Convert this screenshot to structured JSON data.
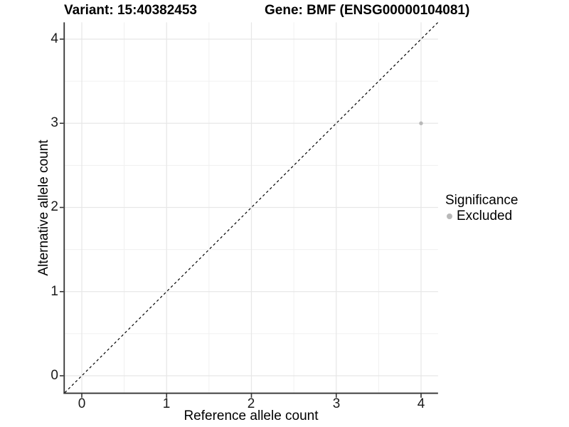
{
  "titles": {
    "variant": "Variant: 15:40382453",
    "gene": "Gene: BMF (ENSG00000104081)"
  },
  "chart_data": {
    "type": "scatter",
    "title_left": "Variant: 15:40382453",
    "title_right": "Gene: BMF (ENSG00000104081)",
    "xlabel": "Reference allele count",
    "ylabel": "Alternative allele count",
    "xlim": [
      -0.2,
      4.2
    ],
    "ylim": [
      -0.2,
      4.2
    ],
    "x_ticks": [
      0,
      1,
      2,
      3,
      4
    ],
    "y_ticks": [
      0,
      1,
      2,
      3,
      4
    ],
    "x_minor_ticks": [
      0.5,
      1.5,
      2.5,
      3.5
    ],
    "y_minor_ticks": [
      0.5,
      1.5,
      2.5,
      3.5
    ],
    "grid": true,
    "points": [
      {
        "x": 4,
        "y": 3,
        "series": "Excluded"
      }
    ],
    "reference_line": {
      "style": "dashed",
      "from": [
        -0.2,
        -0.2
      ],
      "to": [
        4.2,
        4.2
      ],
      "color": "#000000"
    },
    "legend": {
      "title": "Significance",
      "position": "right",
      "entries": [
        {
          "label": "Excluded",
          "color": "#b9b9b9"
        }
      ]
    },
    "colors": {
      "point": "#b9b9b9",
      "grid_major": "#e7e7e7",
      "grid_minor": "#f0f0f0",
      "axis_line": "#333333",
      "tick_text": "#1a1a1a"
    }
  }
}
